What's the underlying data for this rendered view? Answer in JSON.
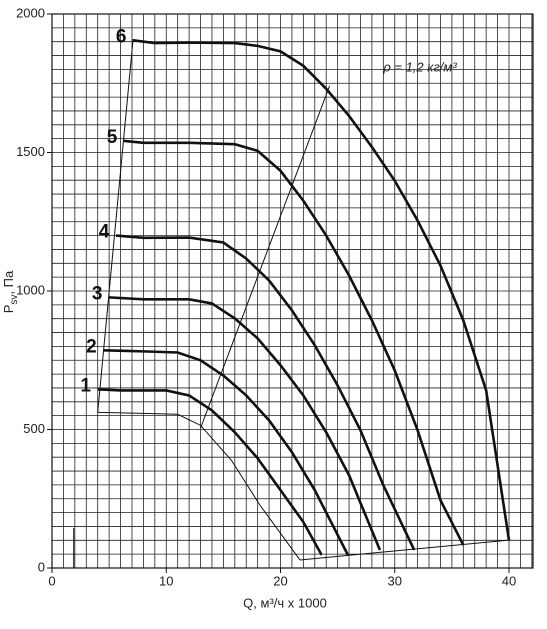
{
  "chart_data": {
    "type": "line",
    "xlabel": "Q, м³/ч x 1000",
    "ylabel": {
      "main": "P",
      "sub": "sv",
      "rest": ", Па"
    },
    "annotation": "ρ = 1,2 кг/м³",
    "xlim": [
      0,
      42.1
    ],
    "ylim": [
      0,
      2000
    ],
    "xticks": [
      0,
      10,
      20,
      30,
      40
    ],
    "yticks": [
      0,
      500,
      1000,
      1500,
      2000
    ],
    "grid": {
      "x_step": 1,
      "y_step": 50
    },
    "series": [
      {
        "name": "6",
        "color": "#111",
        "width": 2.6,
        "x": [
          7.1,
          9,
          12,
          16,
          18,
          20,
          22,
          24,
          26,
          28,
          30,
          32,
          34,
          36,
          38,
          40
        ],
        "values": [
          1905,
          1895,
          1897,
          1895,
          1885,
          1865,
          1813,
          1730,
          1632,
          1520,
          1398,
          1254,
          1092,
          894,
          641,
          100
        ]
      },
      {
        "name": "5",
        "color": "#111",
        "width": 2.6,
        "x": [
          6.3,
          8,
          12,
          16,
          18,
          20,
          22,
          24,
          26,
          28,
          30,
          32,
          34,
          36
        ],
        "values": [
          1542,
          1535,
          1535,
          1530,
          1506,
          1434,
          1326,
          1200,
          1056,
          894,
          713,
          497,
          245,
          83
        ]
      },
      {
        "name": "4",
        "color": "#111",
        "width": 2.6,
        "x": [
          5.6,
          8,
          12,
          15,
          17,
          19,
          21,
          23,
          25,
          27,
          29,
          31.7
        ],
        "values": [
          1200,
          1192,
          1193,
          1175,
          1117,
          1038,
          930,
          804,
          659,
          497,
          299,
          65
        ]
      },
      {
        "name": "3",
        "color": "#111",
        "width": 2.6,
        "x": [
          5.0,
          8,
          12,
          14,
          16,
          18,
          20,
          22,
          24,
          26,
          28.7
        ],
        "values": [
          977,
          970,
          970,
          955,
          901,
          829,
          732,
          623,
          490,
          335,
          65
        ]
      },
      {
        "name": "2",
        "color": "#111",
        "width": 2.6,
        "x": [
          4.5,
          8,
          11,
          13,
          15,
          17,
          19,
          21,
          23,
          25.9
        ],
        "values": [
          786,
          782,
          778,
          750,
          695,
          623,
          533,
          418,
          281,
          47
        ]
      },
      {
        "name": "1",
        "color": "#111",
        "width": 2.6,
        "x": [
          4.0,
          6,
          10,
          12,
          14,
          16,
          18,
          20,
          22,
          23.6
        ],
        "values": [
          645,
          641,
          641,
          623,
          569,
          490,
          396,
          281,
          166,
          47
        ]
      },
      {
        "color": "#111",
        "width": 1,
        "x": [
          4.0,
          7.1
        ],
        "values": [
          562,
          1910
        ]
      },
      {
        "color": "#111",
        "width": 1,
        "x": [
          4.0,
          11,
          13,
          15.7,
          18.2,
          21.7
        ],
        "values": [
          562,
          555,
          515,
          389,
          227,
          29
        ]
      },
      {
        "color": "#111",
        "width": 1,
        "x": [
          21.7,
          40.1
        ],
        "values": [
          29,
          101
        ]
      },
      {
        "color": "#111",
        "width": 1,
        "x": [
          13,
          24.3
        ],
        "values": [
          505,
          1741
        ]
      },
      {
        "color": "#111",
        "width": 1,
        "x": [
          1.9,
          1.9
        ],
        "values": [
          0,
          144
        ]
      }
    ]
  }
}
